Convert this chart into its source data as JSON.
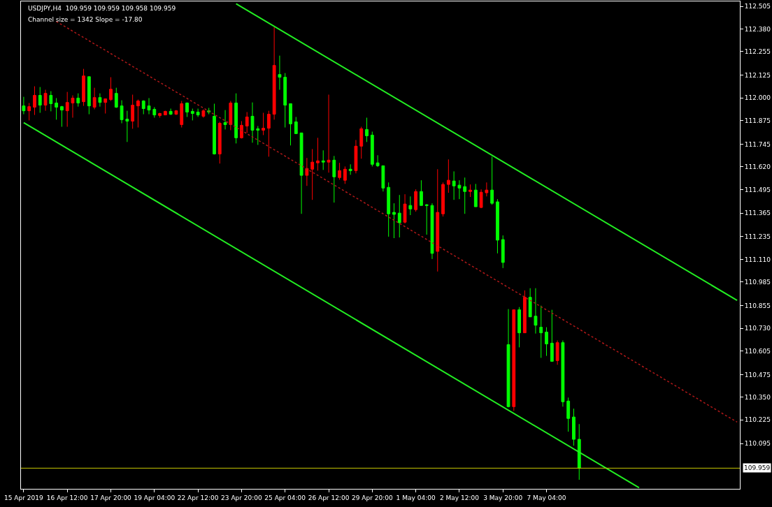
{
  "chart_data": {
    "type": "candlestick",
    "title": "USDJPY,H4  109.959 109.959 109.958 109.959",
    "subtitle": "Channel size = 1342 Slope = -17.80",
    "categories": [
      "15 Apr 2019",
      null,
      null,
      null,
      null,
      null,
      null,
      null,
      "16 Apr 12:00",
      null,
      null,
      null,
      null,
      null,
      null,
      null,
      "17 Apr 20:00",
      null,
      null,
      null,
      null,
      null,
      null,
      null,
      "19 Apr 04:00",
      null,
      null,
      null,
      null,
      null,
      null,
      null,
      "22 Apr 12:00",
      null,
      null,
      null,
      null,
      null,
      null,
      null,
      "23 Apr 20:00",
      null,
      null,
      null,
      null,
      null,
      null,
      null,
      "25 Apr 04:00",
      null,
      null,
      null,
      null,
      null,
      null,
      null,
      "26 Apr 12:00",
      null,
      null,
      null,
      null,
      null,
      null,
      null,
      "29 Apr 20:00",
      null,
      null,
      null,
      null,
      null,
      null,
      null,
      "1 May 04:00",
      null,
      null,
      null,
      null,
      null,
      null,
      null,
      "2 May 12:00",
      null,
      null,
      null,
      null,
      null,
      null,
      null,
      "3 May 20:00",
      null,
      null,
      null,
      null,
      null,
      null,
      null,
      "7 May 04:00",
      null,
      null,
      null,
      null,
      null,
      null,
      null,
      null,
      null,
      null,
      null,
      null,
      null,
      null,
      null,
      null,
      null,
      null,
      null,
      null,
      null,
      null,
      null,
      null,
      null,
      null,
      null,
      null,
      null,
      null,
      null,
      null,
      null,
      null,
      null
    ],
    "ohlc": [
      [
        111.956,
        112.006,
        111.91,
        111.929
      ],
      [
        111.929,
        111.972,
        111.876,
        111.952
      ],
      [
        111.949,
        112.064,
        111.906,
        112.014
      ],
      [
        112.014,
        112.06,
        111.918,
        111.96
      ],
      [
        111.96,
        112.045,
        111.929,
        112.025
      ],
      [
        112.014,
        112.037,
        111.926,
        111.968
      ],
      [
        111.972,
        111.999,
        111.88,
        111.949
      ],
      [
        111.952,
        111.956,
        111.841,
        111.933
      ],
      [
        111.929,
        112.033,
        111.841,
        111.975
      ],
      [
        111.972,
        112.014,
        111.891,
        111.999
      ],
      [
        111.999,
        112.025,
        111.952,
        111.972
      ],
      [
        111.979,
        112.16,
        111.956,
        112.121
      ],
      [
        112.117,
        112.117,
        111.91,
        111.956
      ],
      [
        111.949,
        112.056,
        111.937,
        112.002
      ],
      [
        112.002,
        112.025,
        111.952,
        111.975
      ],
      [
        111.975,
        111.995,
        111.914,
        111.995
      ],
      [
        111.991,
        112.114,
        111.983,
        112.048
      ],
      [
        112.025,
        112.056,
        111.945,
        111.949
      ],
      [
        111.956,
        111.987,
        111.86,
        111.88
      ],
      [
        111.883,
        111.929,
        111.757,
        111.872
      ],
      [
        111.872,
        112.018,
        111.83,
        111.96
      ],
      [
        111.956,
        111.991,
        111.837,
        111.983
      ],
      [
        111.983,
        111.987,
        111.91,
        111.941
      ],
      [
        111.956,
        111.999,
        111.91,
        111.933
      ],
      [
        111.937,
        111.949,
        111.891,
        111.906
      ],
      [
        111.903,
        111.918,
        111.891,
        111.914
      ],
      [
        111.906,
        111.929,
        111.906,
        111.926
      ],
      [
        111.926,
        111.941,
        111.906,
        111.91
      ],
      [
        111.91,
        111.933,
        111.906,
        111.929
      ],
      [
        111.853,
        111.983,
        111.837,
        111.968
      ],
      [
        111.972,
        111.975,
        111.895,
        111.922
      ],
      [
        111.926,
        111.941,
        111.876,
        111.914
      ],
      [
        111.922,
        111.941,
        111.895,
        111.906
      ],
      [
        111.899,
        111.937,
        111.891,
        111.929
      ],
      [
        111.929,
        111.945,
        111.91,
        111.922
      ],
      [
        111.899,
        111.968,
        111.688,
        111.691
      ],
      [
        111.691,
        111.868,
        111.638,
        111.86
      ],
      [
        111.864,
        111.933,
        111.826,
        111.853
      ],
      [
        111.853,
        111.983,
        111.822,
        111.972
      ],
      [
        111.972,
        112.025,
        111.749,
        111.78
      ],
      [
        111.78,
        111.872,
        111.776,
        111.849
      ],
      [
        111.845,
        111.922,
        111.807,
        111.895
      ],
      [
        111.899,
        111.975,
        111.753,
        111.822
      ],
      [
        111.83,
        111.845,
        111.741,
        111.822
      ],
      [
        111.822,
        111.918,
        111.795,
        111.833
      ],
      [
        111.833,
        111.929,
        111.676,
        111.91
      ],
      [
        111.91,
        112.39,
        111.88,
        112.179
      ],
      [
        112.129,
        112.233,
        112.045,
        112.114
      ],
      [
        112.114,
        112.137,
        111.837,
        111.96
      ],
      [
        111.968,
        111.968,
        111.738,
        111.857
      ],
      [
        111.868,
        111.895,
        111.803,
        111.803
      ],
      [
        111.807,
        111.807,
        111.361,
        111.573
      ],
      [
        111.573,
        111.669,
        111.515,
        111.611
      ],
      [
        111.607,
        111.718,
        111.438,
        111.646
      ],
      [
        111.642,
        111.78,
        111.599,
        111.653
      ],
      [
        111.653,
        111.711,
        111.603,
        111.646
      ],
      [
        111.646,
        112.018,
        111.588,
        111.657
      ],
      [
        111.657,
        111.68,
        111.423,
        111.565
      ],
      [
        111.561,
        111.642,
        111.549,
        111.599
      ],
      [
        111.546,
        111.622,
        111.526,
        111.607
      ],
      [
        111.607,
        111.634,
        111.576,
        111.599
      ],
      [
        111.599,
        111.768,
        111.584,
        111.734
      ],
      [
        111.734,
        111.841,
        111.665,
        111.83
      ],
      [
        111.826,
        111.891,
        111.757,
        111.791
      ],
      [
        111.795,
        111.814,
        111.622,
        111.634
      ],
      [
        111.642,
        111.684,
        111.619,
        111.626
      ],
      [
        111.626,
        111.626,
        111.484,
        111.503
      ],
      [
        111.507,
        111.534,
        111.235,
        111.361
      ],
      [
        111.369,
        111.419,
        111.227,
        111.358
      ],
      [
        111.365,
        111.465,
        111.231,
        111.312
      ],
      [
        111.315,
        111.469,
        111.308,
        111.415
      ],
      [
        111.407,
        111.457,
        111.354,
        111.388
      ],
      [
        111.384,
        111.496,
        111.373,
        111.484
      ],
      [
        111.484,
        111.546,
        111.407,
        111.407
      ],
      [
        111.411,
        111.415,
        111.246,
        111.407
      ],
      [
        111.407,
        111.419,
        111.112,
        111.143
      ],
      [
        111.154,
        111.607,
        111.043,
        111.369
      ],
      [
        111.361,
        111.534,
        111.346,
        111.523
      ],
      [
        111.523,
        111.661,
        111.477,
        111.546
      ],
      [
        111.542,
        111.595,
        111.438,
        111.515
      ],
      [
        111.519,
        111.546,
        111.442,
        111.503
      ],
      [
        111.511,
        111.561,
        111.361,
        111.484
      ],
      [
        111.484,
        111.523,
        111.454,
        111.492
      ],
      [
        111.492,
        111.526,
        111.4,
        111.4
      ],
      [
        111.396,
        111.496,
        111.392,
        111.48
      ],
      [
        111.477,
        111.534,
        111.457,
        111.492
      ],
      [
        111.492,
        111.676,
        111.411,
        111.419
      ],
      [
        111.427,
        111.442,
        111.143,
        111.216
      ],
      [
        111.219,
        111.242,
        111.062,
        111.093
      ],
      [
        110.64,
        110.836,
        110.294,
        110.298
      ],
      [
        110.298,
        110.832,
        110.275,
        110.832
      ],
      [
        110.832,
        110.847,
        110.625,
        110.705
      ],
      [
        110.705,
        110.939,
        110.705,
        110.901
      ],
      [
        110.901,
        110.951,
        110.793,
        110.793
      ],
      [
        110.797,
        110.951,
        110.701,
        110.747
      ],
      [
        110.736,
        110.855,
        110.567,
        110.705
      ],
      [
        110.709,
        110.736,
        110.578,
        110.644
      ],
      [
        110.648,
        110.832,
        110.548,
        110.548
      ],
      [
        110.552,
        110.663,
        110.529,
        110.651
      ],
      [
        110.651,
        110.663,
        110.298,
        110.325
      ],
      [
        110.329,
        110.348,
        110.16,
        110.233
      ],
      [
        110.241,
        110.287,
        110.083,
        110.118
      ],
      [
        110.118,
        110.202,
        109.895,
        109.959
      ],
      null,
      null,
      null,
      null,
      null,
      null,
      null,
      null,
      null,
      null,
      null,
      null,
      null,
      null,
      null,
      null,
      null,
      null,
      null,
      null,
      null,
      null,
      null,
      null,
      null,
      null,
      null,
      null,
      null
    ],
    "colors": [
      "#00ff00",
      "#ff0000",
      "#ff0000",
      "#00ff00",
      "#ff0000",
      "#00ff00",
      "#00ff00",
      "#00ff00",
      "#ff0000",
      "#ff0000",
      "#00ff00",
      "#ff0000",
      "#00ff00",
      "#ff0000",
      "#00ff00",
      "#ff0000",
      "#ff0000",
      "#00ff00",
      "#00ff00",
      "#00ff00",
      "#ff0000",
      "#ff0000",
      "#00ff00",
      "#00ff00",
      "#00ff00",
      "#ff0000",
      "#ff0000",
      "#00ff00",
      "#ff0000",
      "#ff0000",
      "#00ff00",
      "#00ff00",
      "#00ff00",
      "#ff0000",
      "#00ff00",
      "#00ff00",
      "#ff0000",
      "#00ff00",
      "#ff0000",
      "#00ff00",
      "#ff0000",
      "#ff0000",
      "#00ff00",
      "#00ff00",
      "#ff0000",
      "#ff0000",
      "#ff0000",
      "#00ff00",
      "#00ff00",
      "#00ff00",
      "#00ff00",
      "#00ff00",
      "#ff0000",
      "#ff0000",
      "#ff0000",
      "#00ff00",
      "#ff0000",
      "#00ff00",
      "#ff0000",
      "#ff0000",
      "#00ff00",
      "#ff0000",
      "#ff0000",
      "#00ff00",
      "#00ff00",
      "#00ff00",
      "#00ff00",
      "#00ff00",
      "#00ff00",
      "#00ff00",
      "#ff0000",
      "#00ff00",
      "#ff0000",
      "#00ff00",
      "#00ff00",
      "#00ff00",
      "#ff0000",
      "#ff0000",
      "#ff0000",
      "#00ff00",
      "#00ff00",
      "#00ff00",
      "#ff0000",
      "#00ff00",
      "#ff0000",
      "#ff0000",
      "#00ff00",
      "#00ff00",
      "#00ff00",
      "#00ff00",
      "#ff0000",
      "#00ff00",
      "#ff0000",
      "#00ff00",
      "#00ff00",
      "#00ff00",
      "#00ff00",
      "#00ff00",
      "#ff0000",
      "#00ff00",
      "#00ff00",
      "#00ff00",
      "#00ff00",
      null,
      null,
      null,
      null,
      null,
      null,
      null,
      null,
      null,
      null,
      null,
      null,
      null,
      null,
      null,
      null,
      null,
      null,
      null,
      null,
      null,
      null,
      null,
      null,
      null,
      null,
      null,
      null,
      null
    ],
    "series": [
      {
        "type": "line",
        "color": "#22ee22",
        "line_style": "solid",
        "values": [
          null,
          null,
          null,
          null,
          null,
          null,
          null,
          null,
          null,
          null,
          null,
          null,
          null,
          null,
          null,
          null,
          null,
          null,
          null,
          null,
          null,
          null,
          null,
          null,
          null,
          null,
          null,
          null,
          null,
          null,
          null,
          null,
          null,
          null,
          null,
          null,
          null,
          null,
          null,
          112.519,
          null,
          null,
          null,
          null,
          null,
          null,
          null,
          null,
          null,
          null,
          null,
          null,
          null,
          null,
          null,
          null,
          null,
          null,
          null,
          null,
          null,
          null,
          null,
          null,
          null,
          null,
          null,
          null,
          null,
          null,
          null,
          null,
          null,
          null,
          null,
          null,
          null,
          null,
          null,
          null,
          null,
          null,
          null,
          null,
          null,
          null,
          null,
          null,
          null,
          null,
          null,
          null,
          null,
          null,
          null,
          null,
          null,
          null,
          null,
          null,
          null,
          null,
          null,
          null,
          null,
          null,
          null,
          null,
          null,
          null,
          null,
          null,
          null,
          null,
          null,
          null,
          null,
          null,
          null,
          null,
          null,
          null,
          null,
          null,
          null,
          null,
          null,
          null,
          null,
          null,
          null,
          110.884
        ]
      },
      {
        "type": "line",
        "color": "#22ee22",
        "line_style": "solid",
        "values": [
          111.864,
          null,
          null,
          null,
          null,
          null,
          null,
          null,
          null,
          null,
          null,
          null,
          null,
          null,
          null,
          null,
          null,
          null,
          null,
          null,
          null,
          null,
          null,
          null,
          null,
          null,
          null,
          null,
          null,
          null,
          null,
          null,
          null,
          null,
          null,
          null,
          null,
          null,
          null,
          null,
          null,
          null,
          null,
          null,
          null,
          null,
          null,
          null,
          null,
          null,
          null,
          null,
          null,
          null,
          null,
          null,
          null,
          null,
          null,
          null,
          null,
          null,
          null,
          null,
          null,
          null,
          null,
          null,
          null,
          null,
          null,
          null,
          null,
          null,
          null,
          null,
          null,
          null,
          null,
          null,
          null,
          null,
          null,
          null,
          null,
          null,
          null,
          null,
          null,
          null,
          null,
          null,
          null,
          null,
          null,
          null,
          null,
          null,
          null,
          null,
          null,
          null,
          null,
          null,
          null,
          null,
          null,
          null,
          null,
          null,
          null,
          null,
          null,
          109.851,
          null,
          null,
          null,
          null,
          null,
          null,
          null,
          null,
          null,
          null,
          null,
          null,
          null,
          null,
          null,
          null,
          null,
          null
        ]
      },
      {
        "type": "line",
        "color": "#b01818",
        "line_style": "dotted",
        "values": [
          null,
          null,
          null,
          null,
          null,
          null,
          112.421,
          null,
          null,
          null,
          null,
          null,
          null,
          null,
          null,
          null,
          null,
          null,
          null,
          null,
          null,
          null,
          null,
          null,
          null,
          null,
          null,
          null,
          null,
          null,
          null,
          null,
          null,
          null,
          null,
          null,
          null,
          null,
          null,
          null,
          null,
          null,
          null,
          null,
          null,
          null,
          null,
          null,
          null,
          null,
          null,
          null,
          null,
          null,
          null,
          null,
          null,
          null,
          null,
          null,
          null,
          null,
          null,
          null,
          null,
          null,
          null,
          null,
          null,
          null,
          null,
          null,
          null,
          null,
          null,
          null,
          null,
          null,
          null,
          null,
          null,
          null,
          null,
          null,
          null,
          null,
          null,
          null,
          null,
          null,
          null,
          null,
          null,
          null,
          null,
          null,
          null,
          null,
          null,
          null,
          null,
          null,
          null,
          null,
          null,
          null,
          null,
          null,
          null,
          null,
          null,
          null,
          null,
          null,
          null,
          null,
          null,
          null,
          null,
          null,
          null,
          null,
          null,
          null,
          null,
          null,
          null,
          null,
          null,
          null,
          null,
          110.213
        ]
      }
    ],
    "ref_lines": [
      {
        "axis": "y",
        "value": 109.959,
        "label": "109.959",
        "color": "#c8c800"
      }
    ],
    "ylim": [
      109.845,
      112.532
    ],
    "yticks": [
      112.505,
      {
        "value": 112.38,
        "label": "112.380"
      },
      112.255,
      112.125,
      {
        "value": 112.0,
        "label": "112.000"
      },
      111.875,
      111.745,
      {
        "value": 111.62,
        "label": "111.620"
      },
      111.495,
      111.365,
      111.235,
      {
        "value": 111.11,
        "label": "111.110"
      },
      110.985,
      110.855,
      {
        "value": 110.73,
        "label": "110.730"
      },
      110.605,
      110.475,
      {
        "value": 110.35,
        "label": "110.350"
      },
      110.225,
      110.095
    ],
    "grid": false
  }
}
